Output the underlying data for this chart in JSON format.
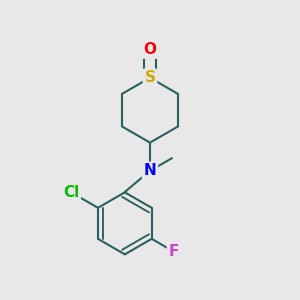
{
  "bg_color": "#e8e8e8",
  "bond_color": "#2a6060",
  "bond_width": 1.5,
  "atom_colors": {
    "O": "#ff0000",
    "S": "#ccaa00",
    "N": "#0000ee",
    "Cl": "#00bb00",
    "F": "#cc44cc",
    "C": "#000000"
  },
  "font_size_atoms": 11,
  "scale": 0.085
}
